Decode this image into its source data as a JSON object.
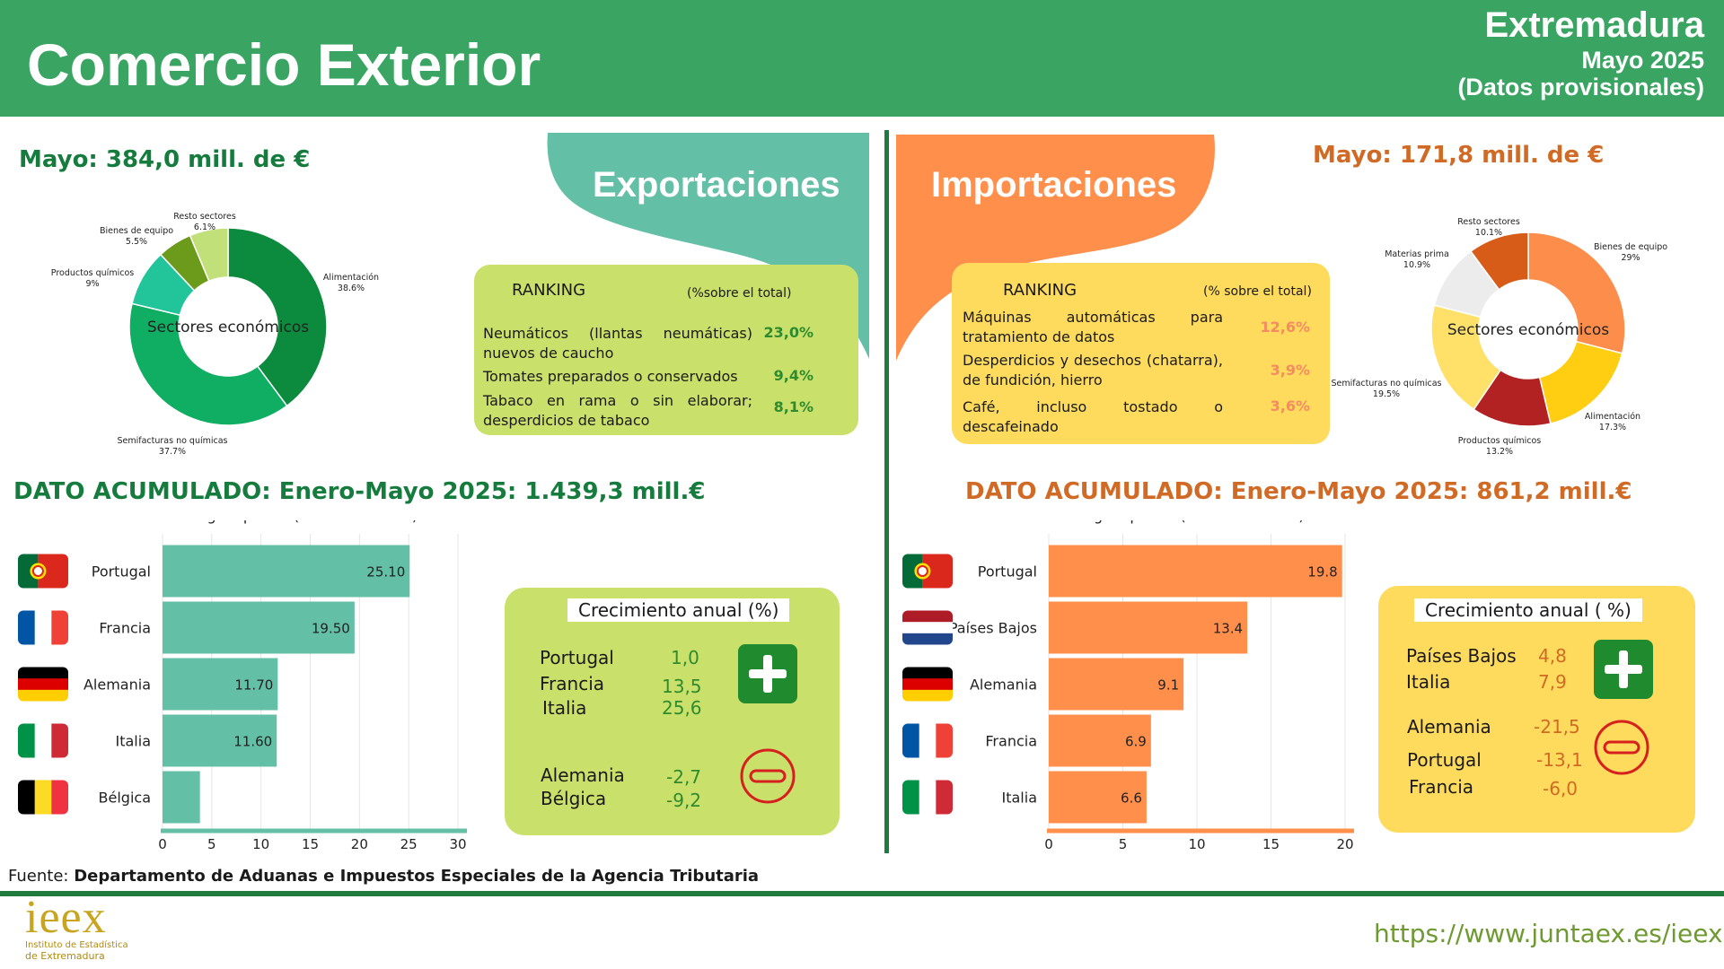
{
  "header": {
    "title": "Comercio Exterior",
    "region": "Extremadura",
    "period": "Mayo 2025",
    "note": "(Datos provisionales)"
  },
  "colors": {
    "header_green": "#3aa563",
    "export_teal": "#63bfa6",
    "import_orange": "#ff8f4a",
    "export_box": "#c9e06a",
    "import_box": "#fedb5c"
  },
  "exports": {
    "section_label": "Exportaciones",
    "month_total": "Mayo: 384,0 mill. de €",
    "accumulated": "DATO ACUMULADO: Enero-Mayo 2025: 1.439,3 mill.€",
    "ranking": {
      "title": "RANKING",
      "subtitle": "(%sobre el total)",
      "items": [
        {
          "name": "Neumáticos (llantas neumáticas) nuevos de caucho",
          "pct": "23,0%"
        },
        {
          "name": "Tomates preparados o conservados",
          "pct": "9,4%"
        },
        {
          "name": "Tabaco en rama o sin elaborar; desperdicios de tabaco",
          "pct": "8,1%"
        }
      ]
    },
    "growth": {
      "title": "Crecimiento anual (%)",
      "positive": [
        {
          "country": "Portugal",
          "value": "1,0"
        },
        {
          "country": "Francia",
          "value": "13,5"
        },
        {
          "country": "Italia",
          "value": "25,6"
        }
      ],
      "negative": [
        {
          "country": "Alemania",
          "value": "-2,7"
        },
        {
          "country": "Bélgica",
          "value": "-9,2"
        }
      ]
    }
  },
  "imports": {
    "section_label": "Importaciones",
    "month_total": "Mayo: 171,8 mill. de €",
    "accumulated": "DATO ACUMULADO: Enero-Mayo 2025: 861,2 mill.€",
    "ranking": {
      "title": "RANKING",
      "subtitle": "(% sobre el total)",
      "items": [
        {
          "name": "Máquinas automáticas para tratamiento de datos",
          "pct": "12,6%"
        },
        {
          "name": "Desperdicios y desechos (chatarra), de fundición, hierro",
          "pct": "3,9%"
        },
        {
          "name": "Café, incluso tostado o descafeinado",
          "pct": "3,6%"
        }
      ]
    },
    "growth": {
      "title": "Crecimiento anual ( %)",
      "positive": [
        {
          "country": "Países Bajos",
          "value": "4,8"
        },
        {
          "country": "Italia",
          "value": "7,9"
        }
      ],
      "negative": [
        {
          "country": "Alemania",
          "value": "-21,5"
        },
        {
          "country": "Portugal",
          "value": "-13,1"
        },
        {
          "country": "Francia",
          "value": "-6,0"
        }
      ]
    }
  },
  "chart_data": [
    {
      "type": "pie",
      "center_label": "Sectores económicos",
      "slices": [
        {
          "label": "Alimentación",
          "value": 38.6,
          "value_label": "38.6%",
          "color": "#0c8a3e"
        },
        {
          "label": "Semifacturas no químicas",
          "value": 37.7,
          "value_label": "37.7%",
          "color": "#0fae62"
        },
        {
          "label": "Productos químicos",
          "value": 9,
          "value_label": "9%",
          "color": "#22c59a"
        },
        {
          "label": "Bienes de equipo",
          "value": 5.5,
          "value_label": "5.5%",
          "color": "#6c9a1a"
        },
        {
          "label": "Resto sectores",
          "value": 6.1,
          "value_label": "6.1%",
          "color": "#c2e07a"
        }
      ]
    },
    {
      "type": "pie",
      "center_label": "Sectores económicos",
      "slices": [
        {
          "label": "Bienes de equipo",
          "value": 29,
          "value_label": "29%",
          "color": "#fd8d4a"
        },
        {
          "label": "Alimentación",
          "value": 17.3,
          "value_label": "17.3%",
          "color": "#ffcd12"
        },
        {
          "label": "Productos químicos",
          "value": 13.2,
          "value_label": "13.2%",
          "color": "#b22222"
        },
        {
          "label": "Semifacturas no químicas",
          "value": 19.5,
          "value_label": "19.5%",
          "color": "#ffe16a"
        },
        {
          "label": "Materias prima",
          "value": 10.9,
          "value_label": "10.9%",
          "color": "#ececec"
        },
        {
          "label": "Resto sectores",
          "value": 10.1,
          "value_label": "10.1%",
          "color": "#d65c17"
        }
      ]
    },
    {
      "type": "bar",
      "orientation": "horizontal",
      "title": "Ranking de países (% sobre el total)",
      "categories": [
        "Portugal",
        "Francia",
        "Alemania",
        "Italia",
        "Bélgica"
      ],
      "values": [
        25.1,
        19.5,
        11.7,
        11.6,
        3.8
      ],
      "value_labels": [
        "25.10",
        "19.50",
        "11.70",
        "11.60",
        ""
      ],
      "flags": [
        "flag-portugal-icon",
        "flag-france-icon",
        "flag-germany-icon",
        "flag-italy-icon",
        "flag-belgium-icon"
      ],
      "xlim": [
        0,
        30
      ],
      "xticks": [
        0,
        5,
        10,
        15,
        20,
        25,
        30
      ],
      "color": "#63bfa6"
    },
    {
      "type": "bar",
      "orientation": "horizontal",
      "title": "Ranking de países (% sobre el total)",
      "categories": [
        "Portugal",
        "Países Bajos",
        "Alemania",
        "Francia",
        "Italia"
      ],
      "values": [
        19.8,
        13.4,
        9.1,
        6.9,
        6.6
      ],
      "value_labels": [
        "19.8",
        "13.4",
        "9.1",
        "6.9",
        "6.6"
      ],
      "flags": [
        "flag-portugal-icon",
        "flag-netherlands-icon",
        "flag-germany-icon",
        "flag-france-icon",
        "flag-italy-icon"
      ],
      "xlim": [
        0,
        20
      ],
      "xticks": [
        0,
        5,
        10,
        15,
        20
      ],
      "color": "#ff8f4a"
    }
  ],
  "footer": {
    "source_label": "Fuente:",
    "source": "Departamento de Aduanas e Impuestos Especiales de la Agencia Tributaria",
    "logo_text": "ieex",
    "logo_line1": "Instituto de Estadística",
    "logo_line2": "de Extremadura",
    "url": "https://www.juntaex.es/ieex"
  }
}
